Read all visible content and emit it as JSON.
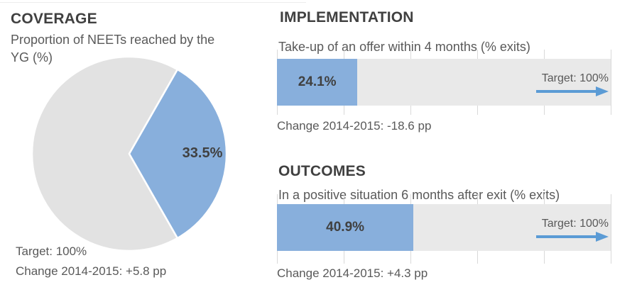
{
  "coverage": {
    "title": "COVERAGE",
    "subtitle": "Proportion of NEETs reached by the YG (%)",
    "value_label": "33.5%",
    "target_label": "Target: 100%",
    "change_label": "Change 2014-2015: +5.8 pp"
  },
  "implementation": {
    "title": "IMPLEMENTATION",
    "subtitle": "Take-up of an offer within 4 months (% exits)",
    "value_label": "24.1%",
    "target_label": "Target: 100%",
    "change_label": "Change 2014-2015: -18.6 pp"
  },
  "outcomes": {
    "title": "OUTCOMES",
    "subtitle": "In a positive situation 6 months after exit (% exits)",
    "value_label": "40.9%",
    "target_label": "Target: 100%",
    "change_label": "Change 2014-2015: +4.3 pp"
  },
  "colors": {
    "accent_blue": "#88AFDC",
    "arrow_blue": "#5B9BD5",
    "pie_gray": "#E2E2E2",
    "track_gray": "#E9E9E9",
    "gridline_gray": "#D9D9D9",
    "title_text": "#404040",
    "body_text": "#595959"
  },
  "chart_data": [
    {
      "type": "pie",
      "title": "COVERAGE",
      "subtitle": "Proportion of NEETs reached by the YG (%)",
      "values": [
        33.5,
        66.5
      ],
      "slice_labels": [
        "33.5%",
        ""
      ],
      "slice_colors": [
        "#88AFDC",
        "#E2E2E2"
      ],
      "rotation": "value slice centered at 3 o'clock",
      "annotations": [
        "Target: 100%",
        "Change 2014-2015: +5.8 pp"
      ]
    },
    {
      "type": "bar",
      "title": "IMPLEMENTATION",
      "subtitle": "Take-up of an offer within 4 months (% exits)",
      "categories": [
        "Take-up of an offer within 4 months (% exits)"
      ],
      "values": [
        24.1
      ],
      "data_labels": [
        "24.1%"
      ],
      "target": 100,
      "xlim": [
        0,
        100
      ],
      "gridline_interval": 20,
      "legend": "none",
      "annotations": [
        "Target: 100%",
        "Change 2014-2015: -18.6 pp"
      ]
    },
    {
      "type": "bar",
      "title": "OUTCOMES",
      "subtitle": "In a positive situation 6 months after exit (% exits)",
      "categories": [
        "In a positive situation 6 months after exit (% exits)"
      ],
      "values": [
        40.9
      ],
      "data_labels": [
        "40.9%"
      ],
      "target": 100,
      "xlim": [
        0,
        100
      ],
      "gridline_interval": 20,
      "legend": "none",
      "annotations": [
        "Target: 100%",
        "Change 2014-2015: +4.3 pp"
      ]
    }
  ]
}
